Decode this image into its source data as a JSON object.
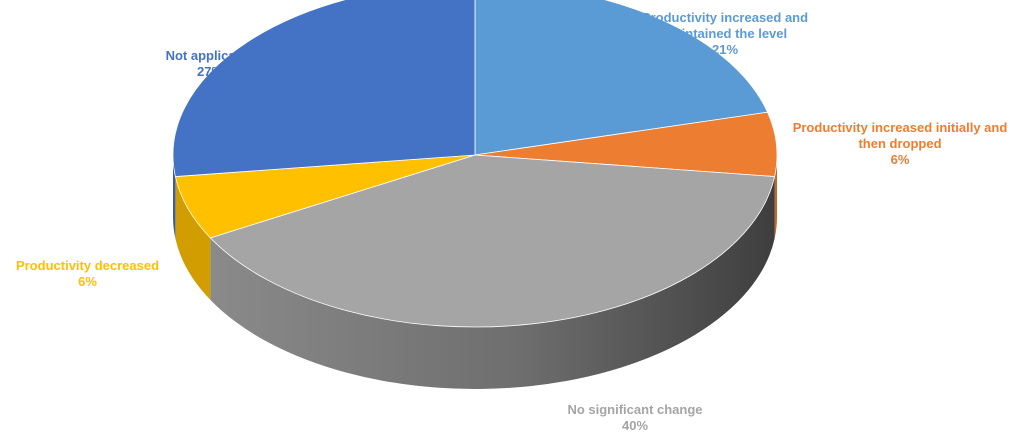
{
  "chart_data": {
    "type": "pie",
    "title": "",
    "slices": [
      {
        "label": "Productivity increased and maintained the level",
        "value": 21,
        "display": "21%",
        "color": "#5B9BD5"
      },
      {
        "label": "Productivity increased initially and then dropped",
        "value": 6,
        "display": "6%",
        "color": "#ED7D31"
      },
      {
        "label": "No significant change",
        "value": 40,
        "display": "40%",
        "color": "#A5A5A5"
      },
      {
        "label": "Productivity decreased",
        "value": 6,
        "display": "6%",
        "color": "#FFC000"
      },
      {
        "label": "Not applicable",
        "value": 27,
        "display": "27%",
        "color": "#4472C4"
      }
    ]
  }
}
